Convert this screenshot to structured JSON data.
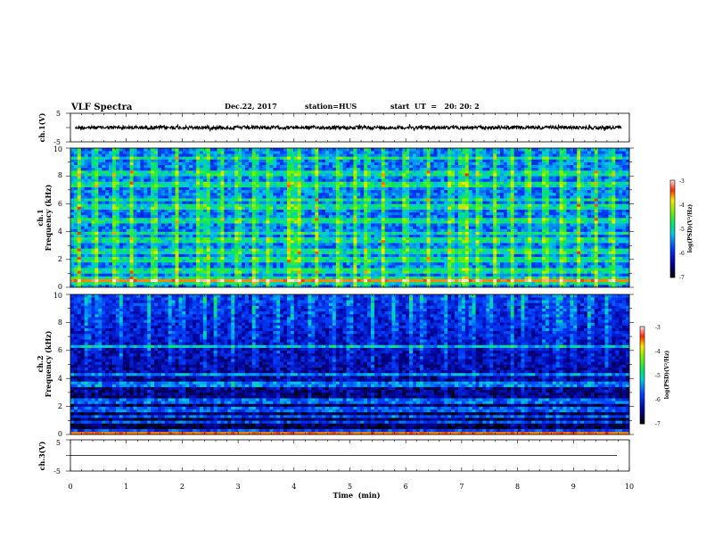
{
  "header": {
    "title": "VLF Spectra",
    "date": "Dec.22, 2017",
    "station": "station=HUS",
    "start_time": "start  UT  =   20: 20: 2"
  },
  "chart_data": [
    {
      "type": "line",
      "panel": "ch1-waveform",
      "ylabel": "ch.1(V)",
      "ylim": [
        -5,
        5
      ],
      "yticks": [
        "5",
        "-5"
      ],
      "xlim": [
        0,
        10
      ],
      "trace": {
        "mean": 0,
        "amplitude": 0.6,
        "style": "dense noise",
        "color": "#000000"
      }
    },
    {
      "type": "heatmap",
      "panel": "ch1-spectrogram",
      "ylabel": "ch.1\nFrequency (kHz)",
      "ylabel_line1": "ch.1",
      "ylabel_line2": "Frequency (kHz)",
      "ylim": [
        0,
        10
      ],
      "yticks": [
        "0",
        "2",
        "4",
        "6",
        "8",
        "10"
      ],
      "xlim": [
        0,
        10
      ],
      "colorbar": {
        "label": "log(PSD)(V²/Hz)",
        "range": [
          -7,
          -3
        ],
        "ticks": [
          "-3",
          "-4",
          "-5",
          "-6",
          "-7"
        ]
      },
      "background_level": -5.6,
      "horizontal_bands_khz": [
        0.3,
        0.6,
        1.2,
        2.0,
        2.6,
        3.4,
        3.9,
        4.8,
        5.8,
        6.3,
        7.4,
        8.2,
        9.3
      ],
      "intense_band_khz": 0.5,
      "burst_times_min": [
        0.15,
        0.45,
        0.8,
        1.1,
        1.5,
        1.9,
        2.3,
        2.45,
        2.7,
        3.0,
        3.3,
        3.55,
        3.9,
        4.0,
        4.1,
        4.4,
        4.8,
        5.1,
        5.3,
        5.6,
        6.0,
        6.4,
        6.8,
        7.0,
        7.1,
        7.3,
        7.6,
        7.9,
        8.2,
        8.5,
        8.8,
        9.1,
        9.4,
        9.7
      ]
    },
    {
      "type": "heatmap",
      "panel": "ch2-spectrogram",
      "ylabel": "ch.2\nFrequency (kHz)",
      "ylabel_line1": "ch.2",
      "ylabel_line2": "Frequency (kHz)",
      "ylim": [
        0,
        10
      ],
      "yticks": [
        "0",
        "2",
        "4",
        "6",
        "8",
        "10"
      ],
      "xlim": [
        0,
        10
      ],
      "colorbar": {
        "label": "log(PSD)(V²/Hz)",
        "range": [
          -7,
          -3
        ],
        "ticks": [
          "-3",
          "-4",
          "-5",
          "-6",
          "-7"
        ]
      },
      "background_level": -6.8,
      "horizontal_bands_khz": [
        0.3,
        0.9,
        1.3,
        1.8,
        2.4,
        3.6,
        4.3,
        6.3
      ],
      "intense_band_khz": 0.1,
      "burst_times_min": [
        0.3,
        0.5,
        0.9,
        1.4,
        1.8,
        2.0,
        2.4,
        2.6,
        2.9,
        3.3,
        3.7,
        3.95,
        4.3,
        4.7,
        5.0,
        5.4,
        5.8,
        6.1,
        6.3,
        6.7,
        7.0,
        7.2,
        7.5,
        7.9,
        8.1,
        8.5,
        8.7,
        8.8,
        9.0,
        9.3,
        9.6
      ]
    },
    {
      "type": "line",
      "panel": "ch3-waveform",
      "ylabel": "ch.3(V)",
      "ylim": [
        -5,
        5
      ],
      "yticks": [
        "5",
        "-5"
      ],
      "xlim": [
        0,
        10
      ],
      "xlabel": "Time  (min)",
      "xticks": [
        "0",
        "1",
        "2",
        "3",
        "4",
        "5",
        "6",
        "7",
        "8",
        "9",
        "10"
      ],
      "trace": {
        "mean": 0,
        "amplitude": 0,
        "style": "flat",
        "color": "#000000"
      }
    }
  ]
}
